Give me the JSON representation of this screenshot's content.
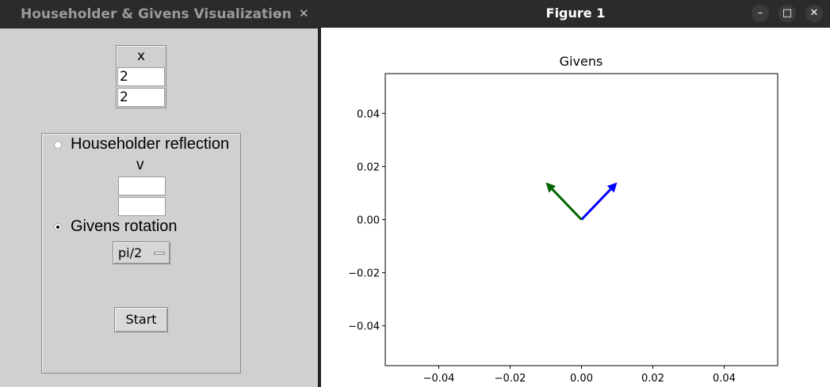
{
  "left_window": {
    "title": "Householder & Givens Visualization",
    "minimize_glyph": "–",
    "close_glyph": "✕",
    "x_label": "x",
    "x_values": [
      "2",
      "2"
    ],
    "householder_label": "Householder reflection",
    "v_label": "v",
    "v_values": [
      "",
      ""
    ],
    "givens_label": "Givens rotation",
    "selected_option": "givens",
    "angle_value": "pi/2",
    "start_label": "Start"
  },
  "figure_window": {
    "title": "Figure 1",
    "minimize_glyph": "–",
    "maximize_glyph": "□",
    "close_glyph": "✕"
  },
  "chart_data": {
    "type": "quiver",
    "title": "Givens",
    "xlabel": "",
    "ylabel": "",
    "xlim": [
      -0.055,
      0.055
    ],
    "ylim": [
      -0.055,
      0.055
    ],
    "xticks": [
      -0.04,
      -0.02,
      0.0,
      0.02,
      0.04
    ],
    "yticks": [
      -0.04,
      -0.02,
      0.0,
      0.02,
      0.04
    ],
    "xtick_labels": [
      "−0.04",
      "−0.02",
      "0.00",
      "0.02",
      "0.04"
    ],
    "ytick_labels": [
      "−0.04",
      "−0.02",
      "0.00",
      "0.02",
      "0.04"
    ],
    "grid": false,
    "arrows": [
      {
        "x0": 0,
        "y0": 0,
        "x1": 0.01,
        "y1": 0.014,
        "color": "#0000ff"
      },
      {
        "x0": 0,
        "y0": 0,
        "x1": -0.01,
        "y1": 0.014,
        "color": "#006400"
      }
    ]
  }
}
